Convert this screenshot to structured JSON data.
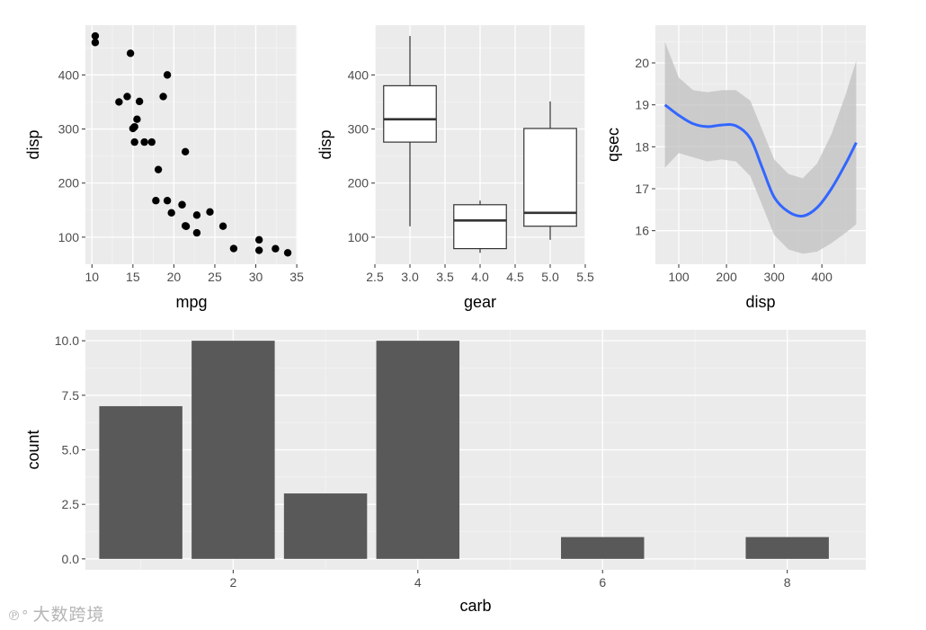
{
  "colors": {
    "panel_bg": "#ebebeb",
    "grid_major": "#ffffff",
    "bar_fill": "#595959",
    "point_fill": "#000000",
    "smooth_line": "#3366ff",
    "ribbon": "#c0c0c0",
    "box_line": "#333333"
  },
  "watermark": {
    "text": "大数跨境"
  },
  "chart_data": [
    {
      "type": "scatter",
      "xlabel": "mpg",
      "ylabel": "disp",
      "xlim": [
        9.2,
        35.1
      ],
      "ylim": [
        50,
        492
      ],
      "xticks": [
        10,
        15,
        20,
        25,
        30,
        35
      ],
      "yticks": [
        100,
        200,
        300,
        400
      ],
      "points": [
        [
          21.0,
          160
        ],
        [
          21.0,
          160
        ],
        [
          22.8,
          108
        ],
        [
          21.4,
          258
        ],
        [
          18.7,
          360
        ],
        [
          18.1,
          225
        ],
        [
          14.3,
          360
        ],
        [
          24.4,
          146.7
        ],
        [
          22.8,
          140.8
        ],
        [
          19.2,
          167.6
        ],
        [
          17.8,
          167.6
        ],
        [
          16.4,
          275.8
        ],
        [
          17.3,
          275.8
        ],
        [
          15.2,
          275.8
        ],
        [
          10.4,
          472
        ],
        [
          10.4,
          460
        ],
        [
          14.7,
          440
        ],
        [
          32.4,
          78.7
        ],
        [
          30.4,
          75.7
        ],
        [
          33.9,
          71.1
        ],
        [
          21.5,
          120.1
        ],
        [
          15.5,
          318
        ],
        [
          15.2,
          304
        ],
        [
          13.3,
          350
        ],
        [
          19.2,
          400
        ],
        [
          27.3,
          79
        ],
        [
          26.0,
          120.3
        ],
        [
          30.4,
          95.1
        ],
        [
          15.8,
          351
        ],
        [
          19.7,
          145
        ],
        [
          15.0,
          301
        ],
        [
          21.4,
          121
        ]
      ]
    },
    {
      "type": "boxplot",
      "xlabel": "gear",
      "ylabel": "disp",
      "xlim": [
        2.5,
        5.5
      ],
      "ylim": [
        50,
        492
      ],
      "xticks": [
        "2.5",
        "3.0",
        "3.5",
        "4.0",
        "4.5",
        "5.0",
        "5.5"
      ],
      "yticks": [
        100,
        200,
        300,
        400
      ],
      "boxes": [
        {
          "x": 3,
          "min": 120.1,
          "q1": 275.8,
          "median": 318,
          "q3": 380,
          "max": 472
        },
        {
          "x": 4,
          "min": 71.1,
          "q1": 78.9,
          "median": 130.9,
          "q3": 160,
          "max": 167.6
        },
        {
          "x": 5,
          "min": 95.1,
          "q1": 120.3,
          "median": 145,
          "q3": 301,
          "max": 351
        }
      ]
    },
    {
      "type": "line",
      "subtype": "smooth_with_ci",
      "xlabel": "disp",
      "ylabel": "qsec",
      "xlim": [
        51,
        492
      ],
      "ylim": [
        15.2,
        20.9
      ],
      "xticks": [
        100,
        200,
        300,
        400
      ],
      "yticks": [
        16,
        17,
        18,
        19,
        20
      ],
      "x": [
        71,
        100,
        130,
        160,
        190,
        220,
        250,
        275,
        300,
        330,
        360,
        390,
        420,
        450,
        472
      ],
      "y": [
        19.0,
        18.75,
        18.55,
        18.48,
        18.52,
        18.5,
        18.2,
        17.5,
        16.8,
        16.45,
        16.35,
        16.55,
        17.0,
        17.6,
        18.1
      ],
      "lower": [
        17.5,
        17.85,
        17.75,
        17.65,
        17.7,
        17.65,
        17.3,
        16.6,
        15.9,
        15.55,
        15.45,
        15.5,
        15.7,
        15.95,
        16.15
      ],
      "upper": [
        20.5,
        19.65,
        19.35,
        19.3,
        19.35,
        19.35,
        19.1,
        18.4,
        17.7,
        17.35,
        17.25,
        17.6,
        18.3,
        19.25,
        20.05
      ]
    },
    {
      "type": "bar",
      "xlabel": "carb",
      "ylabel": "count",
      "xlim": [
        0.4,
        8.85
      ],
      "ylim": [
        -0.5,
        10.5
      ],
      "xticks": [
        2,
        4,
        6,
        8
      ],
      "yticks": [
        "0.0",
        "2.5",
        "5.0",
        "7.5",
        "10.0"
      ],
      "categories": [
        1,
        2,
        3,
        4,
        6,
        8
      ],
      "values": [
        7,
        10,
        3,
        10,
        1,
        1
      ]
    }
  ]
}
